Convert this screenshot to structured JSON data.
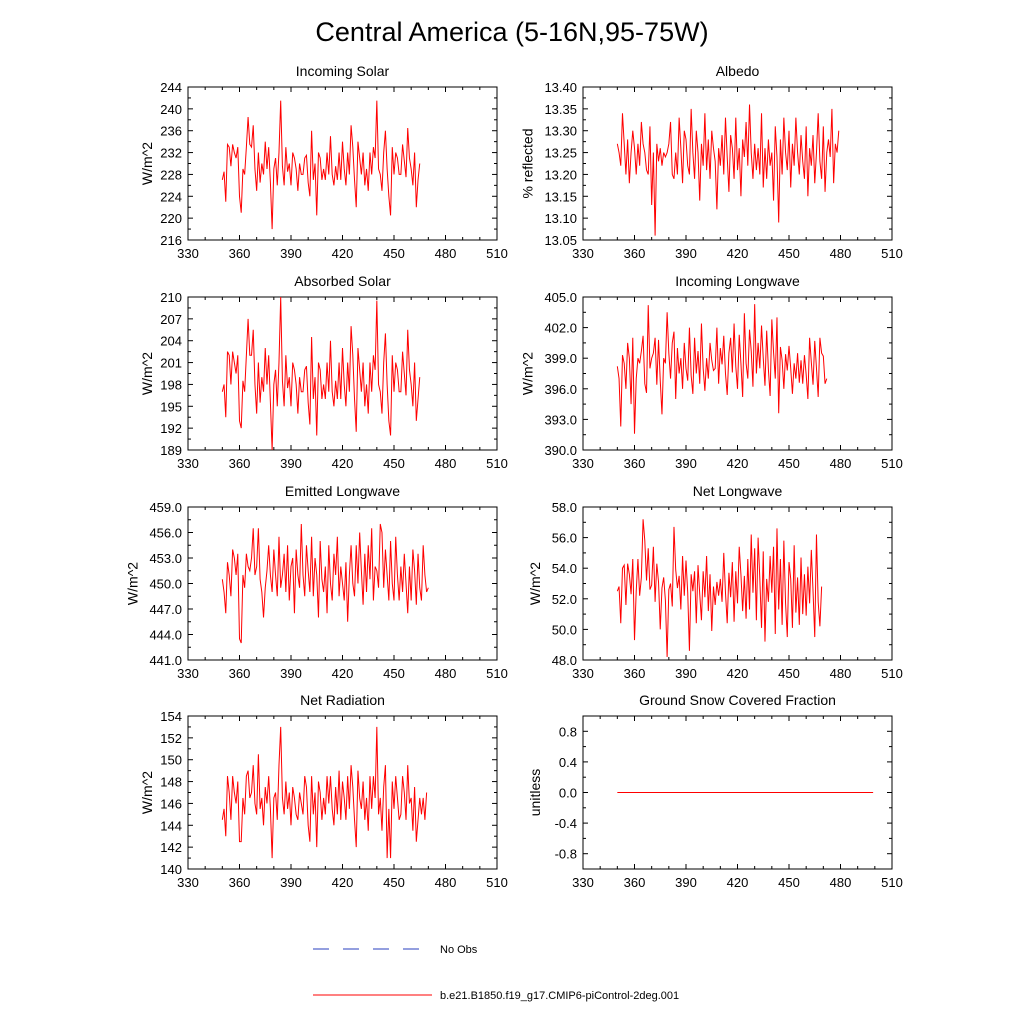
{
  "figure": {
    "title": "Central America (5-16N,95-75W)",
    "line_color": "#ff0000",
    "obs_color": "#2a3fbf"
  },
  "legend": {
    "entries": [
      {
        "label": "No Obs",
        "style": "dashed",
        "color": "#2a3fbf"
      },
      {
        "label": "b.e21.B1850.f19_g17.CMIP6-piControl-2deg.001",
        "style": "solid",
        "color": "#ff0000"
      }
    ]
  },
  "chart_data": [
    {
      "type": "line",
      "title": "Incoming Solar",
      "ylabel": "W/m^2",
      "xlim": [
        330,
        510
      ],
      "xticks": [
        "330",
        "360",
        "390",
        "420",
        "450",
        "480",
        "510"
      ],
      "ylim": [
        216,
        244
      ],
      "yticks": [
        "216",
        "220",
        "224",
        "228",
        "232",
        "236",
        "240",
        "244"
      ],
      "x_start": 350,
      "values": [
        227,
        228.5,
        223,
        233.5,
        233,
        229.5,
        233.5,
        232,
        231,
        233,
        224,
        221,
        229,
        228,
        233,
        238.5,
        233.5,
        233,
        237,
        229,
        225,
        232,
        226.5,
        230,
        228,
        234,
        229,
        233,
        226.5,
        218,
        229,
        231,
        226,
        232,
        241.5,
        229.5,
        226,
        233,
        228.5,
        230,
        226,
        232,
        231,
        229,
        225,
        230,
        228,
        228,
        231,
        231.5,
        226.5,
        224,
        236,
        227,
        230,
        220.5,
        232,
        231,
        227,
        229,
        227,
        232,
        228,
        235,
        228,
        226,
        229.5,
        227,
        232,
        227,
        234,
        229,
        226,
        232,
        228,
        237,
        233,
        227,
        222,
        234,
        231,
        228,
        232,
        226,
        229,
        225,
        232,
        228,
        233,
        231,
        241.5,
        229,
        228,
        225,
        232,
        236,
        229,
        224,
        220.5,
        233,
        228,
        232,
        231,
        228,
        228,
        233.5,
        230.5,
        227.5,
        236.5,
        231,
        229,
        226,
        232,
        222,
        227,
        230
      ]
    },
    {
      "type": "line",
      "title": "Albedo",
      "ylabel": "% reflected",
      "xlim": [
        330,
        510
      ],
      "xticks": [
        "330",
        "360",
        "390",
        "420",
        "450",
        "480",
        "510"
      ],
      "ylim": [
        13.05,
        13.4
      ],
      "yticks": [
        "13.05",
        "13.10",
        "13.15",
        "13.20",
        "13.25",
        "13.30",
        "13.35",
        "13.40"
      ],
      "x_start": 350,
      "values": [
        13.27,
        13.25,
        13.22,
        13.34,
        13.27,
        13.2,
        13.28,
        13.18,
        13.25,
        13.3,
        13.26,
        13.2,
        13.27,
        13.22,
        13.32,
        13.27,
        13.25,
        13.21,
        13.2,
        13.31,
        13.13,
        13.25,
        13.06,
        13.27,
        13.23,
        13.26,
        13.22,
        13.25,
        13.24,
        13.25,
        13.27,
        13.32,
        13.2,
        13.19,
        13.25,
        13.2,
        13.33,
        13.26,
        13.18,
        13.3,
        13.28,
        13.22,
        13.2,
        13.35,
        13.25,
        13.19,
        13.3,
        13.25,
        13.14,
        13.27,
        13.22,
        13.34,
        13.21,
        13.28,
        13.19,
        13.3,
        13.26,
        13.23,
        13.12,
        13.26,
        13.22,
        13.29,
        13.2,
        13.33,
        13.24,
        13.16,
        13.29,
        13.26,
        13.19,
        13.33,
        13.21,
        13.26,
        13.15,
        13.28,
        13.24,
        13.32,
        13.22,
        13.36,
        13.25,
        13.19,
        13.27,
        13.21,
        13.26,
        13.2,
        13.34,
        13.17,
        13.26,
        13.19,
        13.28,
        13.22,
        13.25,
        13.14,
        13.31,
        13.24,
        13.09,
        13.28,
        13.2,
        13.33,
        13.25,
        13.21,
        13.3,
        13.17,
        13.27,
        13.22,
        13.33,
        13.25,
        13.2,
        13.29,
        13.23,
        13.19,
        13.31,
        13.15,
        13.26,
        13.22,
        13.29,
        13.18,
        13.25,
        13.34,
        13.23,
        13.19,
        13.31,
        13.16,
        13.25,
        13.28,
        13.24,
        13.35,
        13.18,
        13.27,
        13.25,
        13.3
      ]
    },
    {
      "type": "line",
      "title": "Absorbed Solar",
      "ylabel": "W/m^2",
      "xlim": [
        330,
        510
      ],
      "xticks": [
        "330",
        "360",
        "390",
        "420",
        "450",
        "480",
        "510"
      ],
      "ylim": [
        189,
        210
      ],
      "yticks": [
        "189",
        "192",
        "195",
        "198",
        "201",
        "204",
        "207",
        "210"
      ],
      "x_start": 350,
      "values": [
        197,
        198,
        193.5,
        202.5,
        202,
        198,
        202.5,
        201,
        199.5,
        202,
        193,
        192,
        198.5,
        197,
        202,
        207,
        202,
        202,
        205.5,
        198,
        194,
        201,
        195.5,
        199,
        197,
        203,
        198,
        202,
        195.5,
        189,
        198,
        200,
        195,
        201,
        210,
        198.5,
        195,
        202,
        197.5,
        199,
        195,
        201,
        200,
        198,
        194,
        199,
        197,
        197,
        200,
        200.5,
        195.5,
        192.5,
        204.5,
        196,
        199,
        191,
        201,
        200,
        196,
        198,
        196,
        201,
        197,
        204,
        197,
        195,
        198.5,
        196,
        201,
        196,
        203,
        198,
        195,
        201,
        197,
        206,
        202,
        196,
        191.5,
        203,
        200,
        197,
        201,
        195,
        198,
        194,
        201,
        197,
        202,
        200,
        209.5,
        198,
        197,
        194,
        201,
        205,
        198,
        193,
        191,
        202,
        197,
        201,
        200,
        197,
        197,
        202.5,
        199.5,
        196.5,
        205.5,
        200,
        198,
        195,
        201,
        193,
        196,
        199
      ]
    },
    {
      "type": "line",
      "title": "Incoming Longwave",
      "ylabel": "W/m^2",
      "xlim": [
        330,
        510
      ],
      "xticks": [
        "330",
        "360",
        "390",
        "420",
        "450",
        "480",
        "510"
      ],
      "ylim": [
        390.0,
        405.0
      ],
      "yticks": [
        "390.0",
        "393.0",
        "396.0",
        "399.0",
        "402.0",
        "405.0"
      ],
      "x_start": 350,
      "values": [
        398.2,
        397,
        392.3,
        399.3,
        398.5,
        396,
        400.5,
        399,
        394.5,
        401,
        391.6,
        397,
        399,
        398.5,
        399.7,
        401.2,
        396.5,
        395.6,
        404.2,
        398,
        399,
        399.5,
        401,
        396.4,
        400.8,
        396.8,
        393.5,
        399,
        398.5,
        403.5,
        399.5,
        397,
        400.5,
        401.6,
        395,
        400,
        397.5,
        399,
        396,
        400.5,
        398,
        396.8,
        402,
        397.3,
        395.5,
        401,
        397.5,
        399.7,
        396.5,
        402.4,
        398,
        395.8,
        399,
        397,
        400.5,
        398.8,
        397.8,
        398,
        402,
        396.5,
        400,
        398.4,
        401.2,
        397.5,
        395.4,
        399.5,
        401,
        397.6,
        402.4,
        398.2,
        396,
        401.3,
        398.5,
        395.2,
        403.4,
        398.5,
        397,
        401.8,
        399.7,
        396.2,
        404.3,
        397.5,
        400.5,
        398,
        402.2,
        399,
        396.3,
        401.7,
        397.9,
        395.3,
        402.8,
        399.6,
        397,
        403,
        393.6,
        400.1,
        398.8,
        396,
        399.4,
        397.8,
        400.2,
        398,
        395.5,
        398.5,
        397,
        399.5,
        396.6,
        398.8,
        396.5,
        399.3,
        397.4,
        395,
        401,
        398.6,
        396.4,
        400.7,
        398,
        395.2,
        401,
        399.5,
        399.2,
        396.5,
        397
      ]
    },
    {
      "type": "line",
      "title": "Emitted Longwave",
      "ylabel": "W/m^2",
      "xlim": [
        330,
        510
      ],
      "xticks": [
        "330",
        "360",
        "390",
        "420",
        "450",
        "480",
        "510"
      ],
      "ylim": [
        441.0,
        459.0
      ],
      "yticks": [
        "441.0",
        "444.0",
        "447.0",
        "450.0",
        "453.0",
        "456.0",
        "459.0"
      ],
      "x_start": 350,
      "values": [
        450.5,
        449,
        446.5,
        452.5,
        451,
        448.5,
        454,
        453,
        451,
        453.5,
        443.5,
        443,
        451,
        449.5,
        453.5,
        452,
        451.5,
        453,
        456.5,
        451,
        452,
        456.5,
        450.5,
        449,
        446,
        449.5,
        451.5,
        454.5,
        451,
        449,
        454,
        451,
        448.5,
        455.5,
        449.5,
        451,
        453.5,
        449,
        454.5,
        448,
        452,
        453,
        446.5,
        454,
        451,
        449.5,
        457,
        451,
        448.5,
        454.5,
        451.5,
        449,
        455.5,
        448.5,
        453,
        451,
        446,
        455,
        450.5,
        449,
        452,
        446.5,
        454.5,
        450,
        448,
        453.5,
        451,
        455.5,
        448.5,
        452,
        450,
        448,
        452.5,
        445.5,
        451,
        454.5,
        450,
        448.5,
        454.5,
        450,
        456,
        451.5,
        447.5,
        453.5,
        449,
        454.5,
        450.5,
        456.5,
        448,
        452,
        451.5,
        449.5,
        457,
        456,
        449.5,
        454,
        451,
        448,
        455,
        450,
        448,
        455.5,
        451,
        448,
        452,
        449,
        453.5,
        450,
        446.5,
        452,
        448,
        454,
        451.5,
        447.5,
        453.5,
        449.5,
        448,
        454.5,
        451,
        449,
        449.5
      ]
    },
    {
      "type": "line",
      "title": "Net Longwave",
      "ylabel": "W/m^2",
      "xlim": [
        330,
        510
      ],
      "xticks": [
        "330",
        "360",
        "390",
        "420",
        "450",
        "480",
        "510"
      ],
      "ylim": [
        48.0,
        58.0
      ],
      "yticks": [
        "48.0",
        "50.0",
        "52.0",
        "54.0",
        "56.0",
        "58.0"
      ],
      "x_start": 350,
      "values": [
        52.5,
        52.8,
        50.4,
        54,
        54.2,
        51.6,
        54.3,
        53.6,
        52.3,
        54.6,
        49.3,
        52.5,
        54.6,
        52.2,
        53.4,
        57.2,
        55.8,
        53.2,
        55.3,
        52.6,
        52.9,
        55.4,
        51.8,
        54.3,
        53.1,
        50,
        52.7,
        53.4,
        51.9,
        48.2,
        52.6,
        53,
        51.5,
        56.7,
        53.9,
        52.7,
        53.5,
        51.3,
        54.8,
        52.2,
        54.5,
        52.4,
        48.6,
        53.6,
        52.5,
        53.8,
        50.4,
        54.2,
        52.3,
        50.6,
        53.8,
        52.1,
        54.8,
        51.2,
        53.6,
        49.9,
        52.8,
        51.6,
        53.1,
        52.2,
        53.3,
        51.8,
        55,
        52.4,
        50.4,
        53.7,
        52.1,
        54.4,
        50.5,
        53.8,
        51.7,
        55.4,
        53.6,
        51.2,
        53.5,
        50.7,
        54.6,
        51.3,
        56.2,
        52.4,
        55.3,
        50.6,
        56,
        53.3,
        50.1,
        55.1,
        49.2,
        53.3,
        51.8,
        54.8,
        52.4,
        55.4,
        49.7,
        56.6,
        51.3,
        54.6,
        50.3,
        55.8,
        51.7,
        49.5,
        54.4,
        53.3,
        50.1,
        55.5,
        51.1,
        53.4,
        50.3,
        54.7,
        51,
        53.6,
        50.9,
        54.1,
        51.7,
        55.2,
        52.5,
        49.5,
        56.2,
        51.8,
        50.2,
        52.8
      ]
    },
    {
      "type": "line",
      "title": "Net Radiation",
      "ylabel": "W/m^2",
      "xlim": [
        330,
        510
      ],
      "xticks": [
        "330",
        "360",
        "390",
        "420",
        "450",
        "480",
        "510"
      ],
      "ylim": [
        140,
        154
      ],
      "yticks": [
        "140",
        "142",
        "144",
        "146",
        "148",
        "150",
        "152",
        "154"
      ],
      "x_start": 350,
      "values": [
        144.5,
        145.5,
        143,
        148.5,
        147,
        144.5,
        148.5,
        147,
        146,
        148,
        142.5,
        142.5,
        146.5,
        145,
        148.5,
        149,
        146.5,
        147,
        149.5,
        146,
        145,
        150.5,
        145.5,
        146.5,
        144,
        147.5,
        146,
        148.5,
        145.5,
        141,
        146.5,
        147,
        144.5,
        149.5,
        153,
        146.5,
        145,
        148,
        145.5,
        147,
        144,
        147.5,
        146.5,
        145,
        144.5,
        147,
        146,
        145,
        148.5,
        147.5,
        144,
        142.5,
        148.5,
        145,
        147,
        142,
        148,
        147,
        144.5,
        146.5,
        145,
        148.5,
        146,
        148.5,
        145.5,
        144,
        147.5,
        145,
        149,
        144.5,
        148,
        146.5,
        144.5,
        148.5,
        145.5,
        149.5,
        147.5,
        144.5,
        142,
        149,
        146.5,
        145.5,
        148,
        144.5,
        146.5,
        143.5,
        148.5,
        145.5,
        148.5,
        146.5,
        153,
        145,
        146.5,
        143.5,
        147.5,
        149.5,
        141,
        145.5,
        141,
        148,
        145.5,
        148.5,
        146.5,
        144.5,
        145,
        148.5,
        147,
        144.5,
        149.5,
        146,
        146.5,
        143.5,
        147.5,
        142.5,
        144.5,
        146.5,
        145,
        146.5,
        144.5,
        147
      ]
    },
    {
      "type": "line",
      "title": "Ground Snow Covered Fraction",
      "ylabel": "unitless",
      "xlim": [
        330,
        510
      ],
      "xticks": [
        "330",
        "360",
        "390",
        "420",
        "450",
        "480",
        "510"
      ],
      "ylim": [
        -1.0,
        1.0
      ],
      "yticks": [
        "-0.8",
        "-0.4",
        "0.0",
        "0.4",
        "0.8"
      ],
      "x_start": 350,
      "x_end": 499,
      "values": [
        0.0,
        0.0
      ]
    }
  ]
}
